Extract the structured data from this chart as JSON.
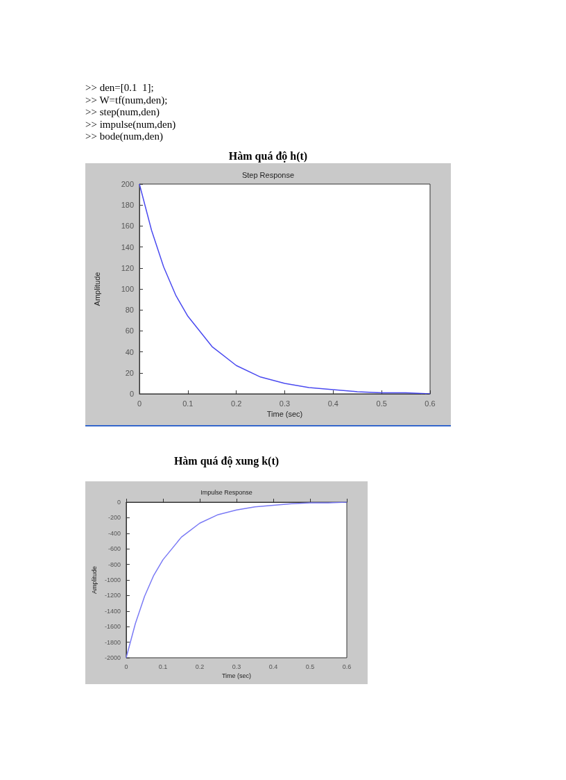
{
  "chart_data": [
    {
      "type": "line",
      "title": "Hàm quá độ h(t)",
      "subtitle": "Step Response",
      "xlabel": "Time (sec)",
      "ylabel": "Amplitude",
      "annotations": [
        ">> den=[0.1  1];",
        ">> W=tf(num,den);",
        ">> step(num,den)",
        ">> impulse(num,den)",
        ">> bode(num,den)"
      ],
      "x": [
        0,
        0.025,
        0.05,
        0.075,
        0.1,
        0.15,
        0.2,
        0.25,
        0.3,
        0.35,
        0.4,
        0.45,
        0.5,
        0.55,
        0.6
      ],
      "series": [
        {
          "color": "#4a4af0",
          "values": [
            200,
            156,
            121,
            94,
            74,
            45,
            27,
            16,
            10,
            6,
            4,
            2,
            1,
            1,
            0
          ]
        }
      ],
      "xlim": [
        0,
        0.6
      ],
      "xticks": [
        0,
        0.1,
        0.2,
        0.3,
        0.4,
        0.5,
        0.6
      ],
      "ylim": [
        0,
        200
      ],
      "yticks": [
        0,
        20,
        40,
        60,
        80,
        100,
        120,
        140,
        160,
        180,
        200
      ],
      "ref_lines": [
        {
          "axis": "y",
          "value": 0,
          "label": null,
          "color": "#333333",
          "line_style": "dashed"
        }
      ],
      "grid": false,
      "marker": "none",
      "line_style": "solid"
    },
    {
      "type": "line",
      "title": "Hàm quá độ xung k(t)",
      "subtitle": "Impulse Response",
      "xlabel": "Time (sec)",
      "ylabel": "Amplitude",
      "x": [
        0,
        0.025,
        0.05,
        0.075,
        0.1,
        0.15,
        0.2,
        0.25,
        0.3,
        0.35,
        0.4,
        0.45,
        0.5,
        0.55,
        0.6
      ],
      "series": [
        {
          "color": "#7a7af5",
          "values": [
            -2000,
            -1560,
            -1210,
            -940,
            -740,
            -450,
            -270,
            -160,
            -100,
            -60,
            -40,
            -20,
            -10,
            -10,
            0
          ]
        }
      ],
      "xlim": [
        0,
        0.6
      ],
      "xticks": [
        0,
        0.1,
        0.2,
        0.3,
        0.4,
        0.5,
        0.6
      ],
      "ylim": [
        -2000,
        0
      ],
      "yticks": [
        -2000,
        -1800,
        -1600,
        -1400,
        -1200,
        -1000,
        -800,
        -600,
        -400,
        -200,
        0
      ],
      "grid": false,
      "marker": "none",
      "line_style": "solid"
    }
  ]
}
